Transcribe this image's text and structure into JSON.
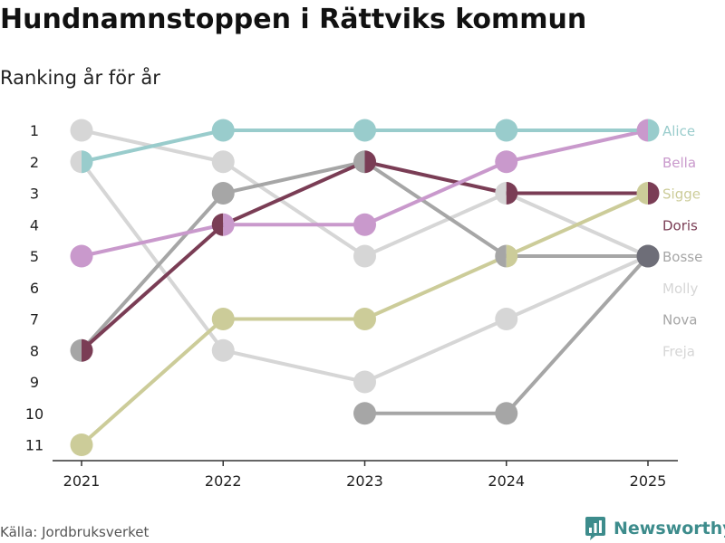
{
  "chart_data": {
    "type": "line",
    "title": "Hundnamnstoppen i Rättviks kommun",
    "subtitle": "Ranking år för år",
    "x": [
      "2021",
      "2022",
      "2023",
      "2024",
      "2025"
    ],
    "ylim": [
      1,
      11
    ],
    "y_ticks": [
      "1",
      "2",
      "3",
      "4",
      "5",
      "6",
      "7",
      "8",
      "9",
      "10",
      "11"
    ],
    "y_inverted": true,
    "series": [
      {
        "name": "Freja",
        "color": "#d6d6d6",
        "values": [
          1,
          2,
          5,
          3,
          5
        ]
      },
      {
        "name": "Molly",
        "color": "#d6d6d6",
        "values": [
          2,
          8,
          9,
          7,
          5
        ]
      },
      {
        "name": "Nova",
        "color": "#a6a6a6",
        "values": [
          8,
          3,
          2,
          5,
          5
        ]
      },
      {
        "name": "Bosse",
        "color": "#a6a6a6",
        "values": [
          null,
          null,
          10,
          10,
          5
        ]
      },
      {
        "name": "Sigge",
        "color": "#cccc99",
        "values": [
          11,
          7,
          7,
          5,
          3
        ]
      },
      {
        "name": "Doris",
        "color": "#7a3d55",
        "values": [
          8,
          4,
          2,
          3,
          3
        ]
      },
      {
        "name": "Bella",
        "color": "#c999cc",
        "values": [
          5,
          4,
          4,
          2,
          1
        ]
      },
      {
        "name": "Alice",
        "color": "#99cccc",
        "values": [
          2,
          1,
          1,
          1,
          1
        ]
      }
    ],
    "labels": [
      {
        "text": "Alice",
        "color": "#99cccc"
      },
      {
        "text": "Bella",
        "color": "#c999cc"
      },
      {
        "text": "Sigge",
        "color": "#cccc99"
      },
      {
        "text": "Doris",
        "color": "#7a3d55"
      },
      {
        "text": "Bosse",
        "color": "#a6a6a6"
      },
      {
        "text": "Molly",
        "color": "#d6d6d6"
      },
      {
        "text": "Nova",
        "color": "#a6a6a6"
      },
      {
        "text": "Freja",
        "color": "#d6d6d6"
      }
    ],
    "bosse_2025_marker_color": "#6e6e78"
  },
  "footer": {
    "source": "Källa: Jordbruksverket",
    "brand": "Newsworthy",
    "brand_color": "#3d8c8c"
  }
}
